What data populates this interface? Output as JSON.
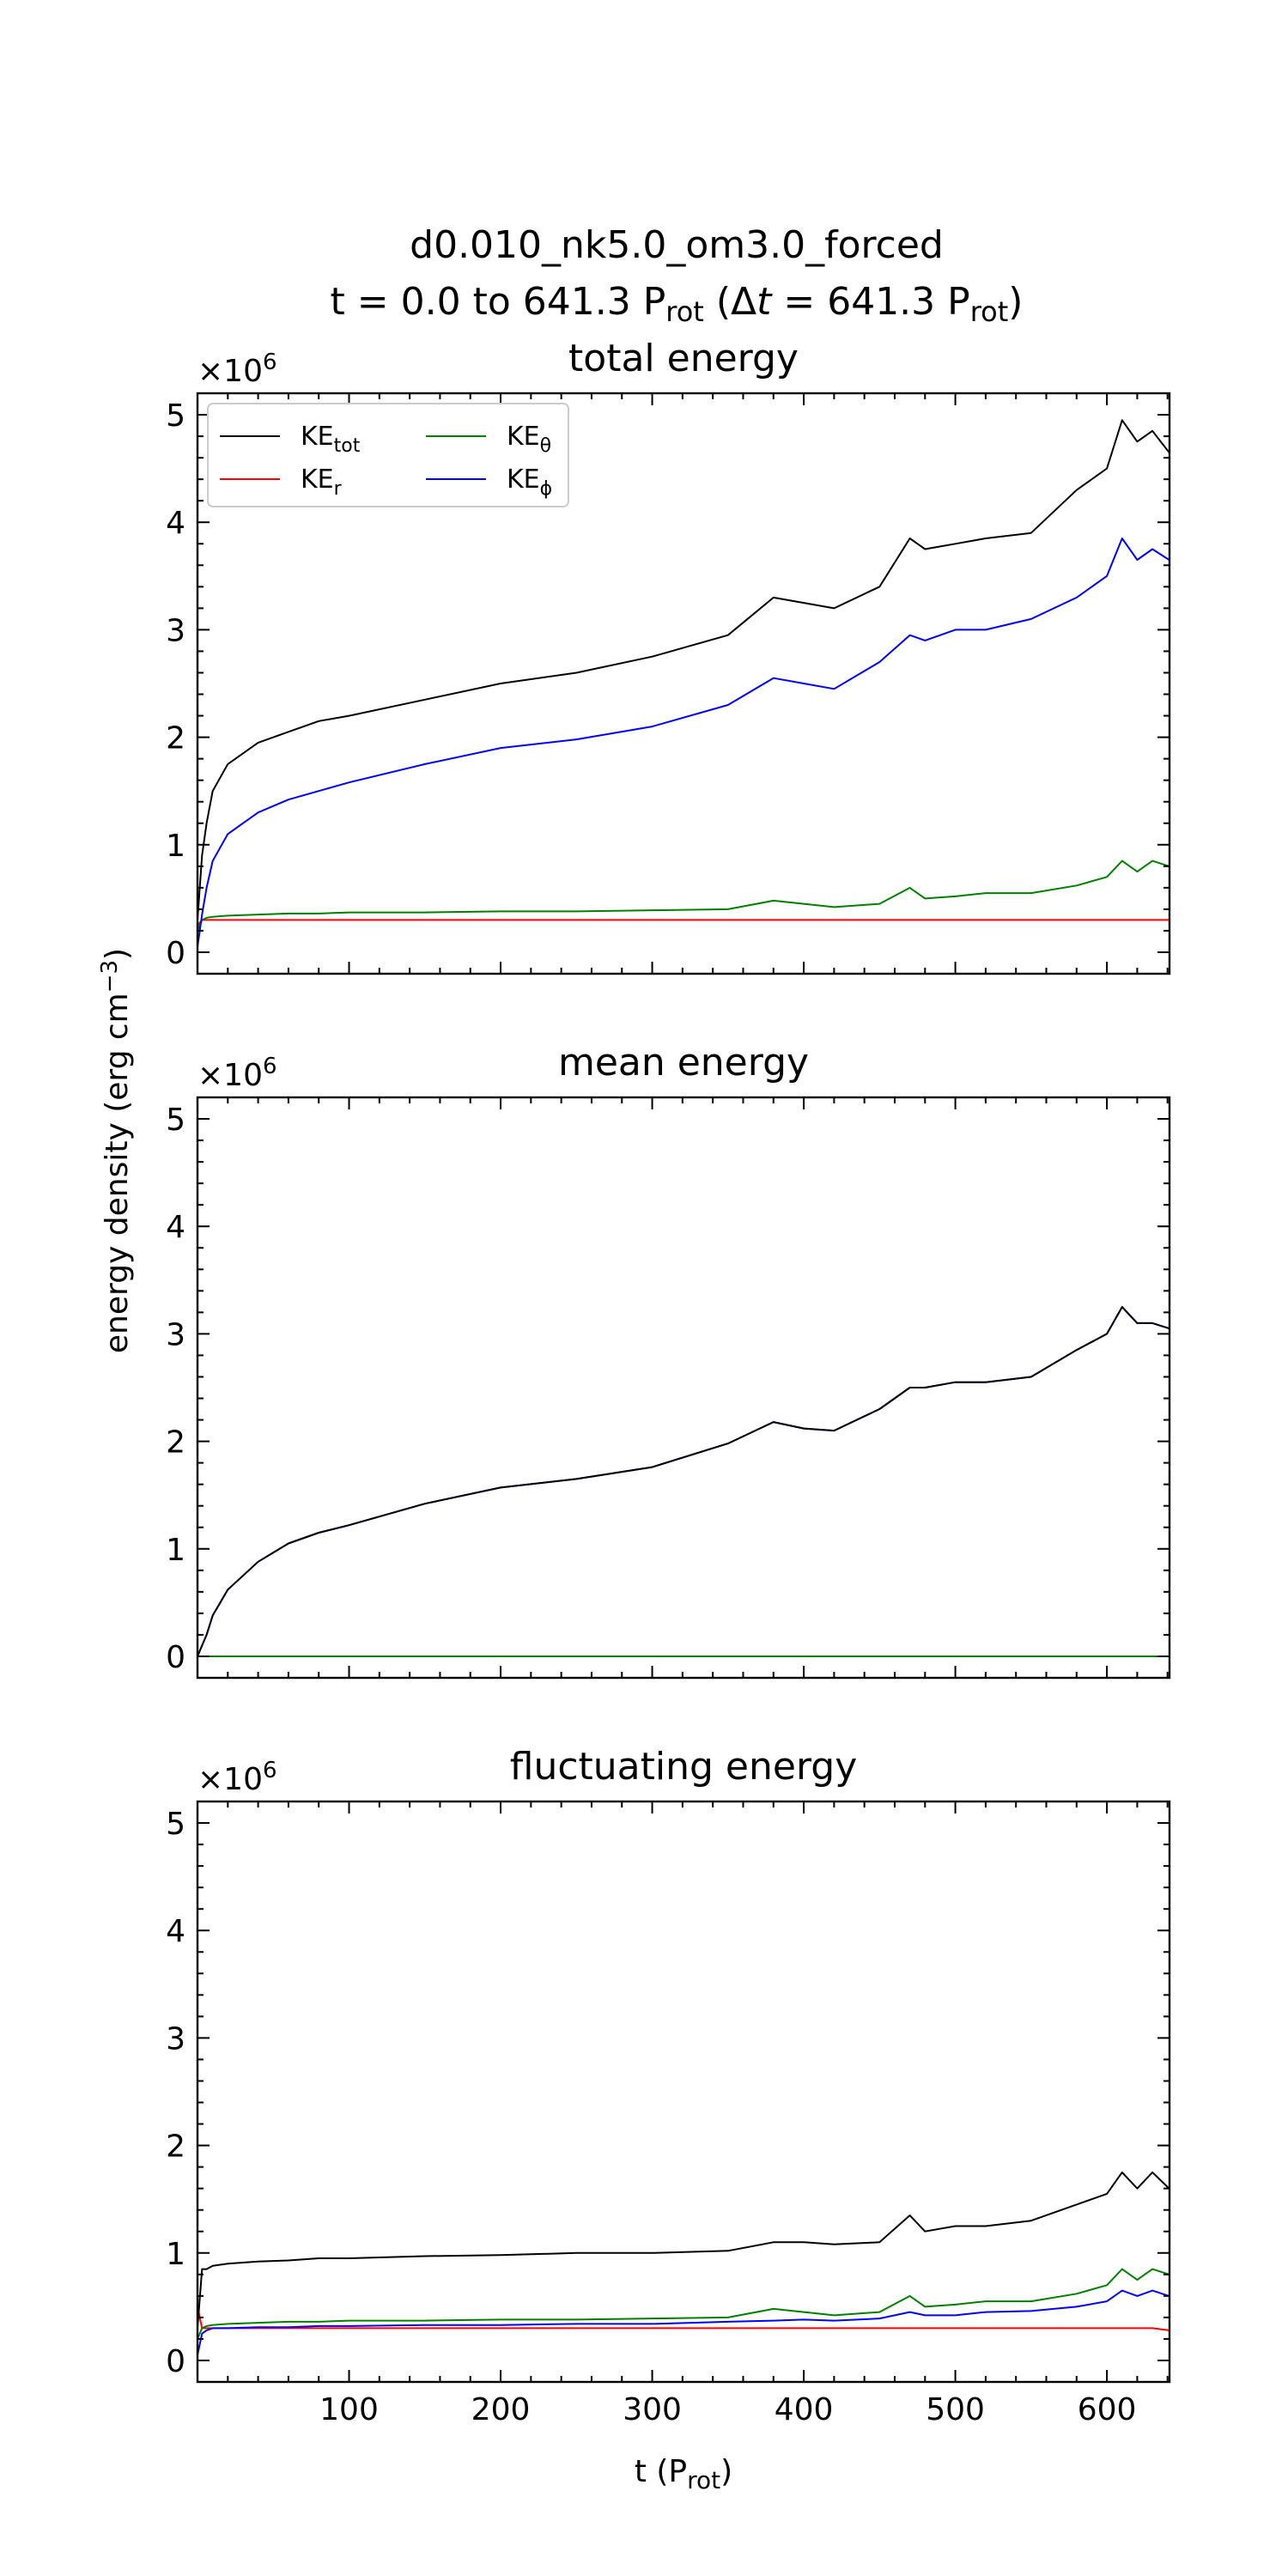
{
  "figure": {
    "title_line1": "d0.010_nk5.0_om3.0_forced",
    "title_line2_pre": "t = 0.0 to 641.3 P",
    "title_line2_sub1": "rot",
    "title_line2_mid": " (Δ",
    "title_line2_t": "t",
    "title_line2_eq": " = 641.3 P",
    "title_line2_sub2": "rot",
    "title_line2_post": ")",
    "ylabel_pre": "energy density (erg cm",
    "ylabel_sup": "−3",
    "ylabel_post": ")",
    "xlabel_pre": "t (P",
    "xlabel_sub": "rot",
    "xlabel_post": ")",
    "exponent_label": "×10",
    "exponent_sup": "6"
  },
  "legend": {
    "location": "upper-left",
    "entries": [
      {
        "key": "tot",
        "base": "KE",
        "sub": "tot",
        "color": "#000000"
      },
      {
        "key": "theta",
        "base": "KE",
        "sub": "θ",
        "color": "#008000"
      },
      {
        "key": "r",
        "base": "KE",
        "sub": "r",
        "color": "#ff0000"
      },
      {
        "key": "phi",
        "base": "KE",
        "sub": "ϕ",
        "color": "#0000ff"
      }
    ]
  },
  "chart_data": [
    {
      "type": "line",
      "title": "total energy",
      "xlim": [
        0,
        641.3
      ],
      "ylim": [
        -0.2,
        5.2
      ],
      "y_multiplier": "1e6",
      "xticks": [
        100,
        200,
        300,
        400,
        500,
        600
      ],
      "yticks": [
        0,
        1,
        2,
        3,
        4,
        5
      ],
      "x": [
        0,
        3,
        6,
        10,
        20,
        40,
        60,
        80,
        100,
        150,
        200,
        250,
        300,
        350,
        380,
        400,
        420,
        450,
        470,
        480,
        500,
        520,
        550,
        580,
        600,
        610,
        620,
        630,
        641
      ],
      "series": [
        {
          "name": "KEtot",
          "color": "#000000",
          "values": [
            0.3,
            0.9,
            1.2,
            1.5,
            1.75,
            1.95,
            2.05,
            2.15,
            2.2,
            2.35,
            2.5,
            2.6,
            2.75,
            2.95,
            3.3,
            3.25,
            3.2,
            3.4,
            3.85,
            3.75,
            3.8,
            3.85,
            3.9,
            4.3,
            4.5,
            4.95,
            4.75,
            4.85,
            4.65
          ]
        },
        {
          "name": "KEr",
          "color": "#ff0000",
          "values": [
            0.25,
            0.3,
            0.3,
            0.3,
            0.3,
            0.3,
            0.3,
            0.3,
            0.3,
            0.3,
            0.3,
            0.3,
            0.3,
            0.3,
            0.3,
            0.3,
            0.3,
            0.3,
            0.3,
            0.3,
            0.3,
            0.3,
            0.3,
            0.3,
            0.3,
            0.3,
            0.3,
            0.3,
            0.3
          ]
        },
        {
          "name": "KEθ",
          "color": "#008000",
          "values": [
            0.2,
            0.3,
            0.32,
            0.33,
            0.34,
            0.35,
            0.36,
            0.36,
            0.37,
            0.37,
            0.38,
            0.38,
            0.39,
            0.4,
            0.48,
            0.45,
            0.42,
            0.45,
            0.6,
            0.5,
            0.52,
            0.55,
            0.55,
            0.62,
            0.7,
            0.85,
            0.75,
            0.85,
            0.8
          ]
        },
        {
          "name": "KEϕ",
          "color": "#0000ff",
          "values": [
            0.05,
            0.35,
            0.6,
            0.85,
            1.1,
            1.3,
            1.42,
            1.5,
            1.58,
            1.75,
            1.9,
            1.98,
            2.1,
            2.3,
            2.55,
            2.5,
            2.45,
            2.7,
            2.95,
            2.9,
            3.0,
            3.0,
            3.1,
            3.3,
            3.5,
            3.85,
            3.65,
            3.75,
            3.65
          ]
        }
      ]
    },
    {
      "type": "line",
      "title": "mean energy",
      "xlim": [
        0,
        641.3
      ],
      "ylim": [
        -0.2,
        5.2
      ],
      "y_multiplier": "1e6",
      "xticks": [
        100,
        200,
        300,
        400,
        500,
        600
      ],
      "yticks": [
        0,
        1,
        2,
        3,
        4,
        5
      ],
      "x": [
        0,
        3,
        6,
        10,
        20,
        40,
        60,
        80,
        100,
        150,
        200,
        250,
        300,
        350,
        380,
        400,
        420,
        450,
        470,
        480,
        500,
        520,
        550,
        580,
        600,
        610,
        620,
        630,
        641
      ],
      "series": [
        {
          "name": "KEtot",
          "color": "#000000",
          "values": [
            0,
            0.1,
            0.2,
            0.38,
            0.62,
            0.88,
            1.05,
            1.15,
            1.22,
            1.42,
            1.57,
            1.65,
            1.76,
            1.98,
            2.18,
            2.12,
            2.1,
            2.3,
            2.5,
            2.5,
            2.55,
            2.55,
            2.6,
            2.85,
            3.0,
            3.25,
            3.1,
            3.1,
            3.05
          ]
        },
        {
          "name": "KEr",
          "color": "#ff0000",
          "values": [
            0,
            0,
            0,
            0,
            0,
            0,
            0,
            0,
            0,
            0,
            0,
            0,
            0,
            0,
            0,
            0,
            0,
            0,
            0,
            0,
            0,
            0,
            0,
            0,
            0,
            0,
            0,
            0,
            0
          ]
        },
        {
          "name": "KEθ",
          "color": "#008000",
          "values": [
            0,
            0,
            0,
            0,
            0,
            0,
            0,
            0,
            0,
            0,
            0,
            0,
            0,
            0,
            0,
            0,
            0,
            0,
            0,
            0,
            0,
            0,
            0,
            0,
            0,
            0,
            0,
            0,
            0
          ]
        },
        {
          "name": "KEϕ",
          "color": "#0000ff",
          "values": [
            0,
            0.1,
            0.2,
            0.38,
            0.62,
            0.88,
            1.05,
            1.15,
            1.22,
            1.42,
            1.57,
            1.65,
            1.76,
            1.98,
            2.18,
            2.12,
            2.1,
            2.3,
            2.5,
            2.5,
            2.55,
            2.55,
            2.6,
            2.85,
            3.0,
            3.25,
            3.1,
            3.1,
            3.05
          ]
        }
      ]
    },
    {
      "type": "line",
      "title": "fluctuating energy",
      "xlim": [
        0,
        641.3
      ],
      "ylim": [
        -0.2,
        5.2
      ],
      "y_multiplier": "1e6",
      "xticks": [
        100,
        200,
        300,
        400,
        500,
        600
      ],
      "yticks": [
        0,
        1,
        2,
        3,
        4,
        5
      ],
      "x": [
        0,
        3,
        6,
        10,
        20,
        40,
        60,
        80,
        100,
        150,
        200,
        250,
        300,
        350,
        380,
        400,
        420,
        450,
        470,
        480,
        500,
        520,
        550,
        580,
        600,
        610,
        620,
        630,
        641
      ],
      "series": [
        {
          "name": "KEtot",
          "color": "#000000",
          "values": [
            0.3,
            0.85,
            0.85,
            0.88,
            0.9,
            0.92,
            0.93,
            0.95,
            0.95,
            0.97,
            0.98,
            1.0,
            1.0,
            1.02,
            1.1,
            1.1,
            1.08,
            1.1,
            1.35,
            1.2,
            1.25,
            1.25,
            1.3,
            1.45,
            1.55,
            1.75,
            1.6,
            1.75,
            1.6
          ]
        },
        {
          "name": "KEr",
          "color": "#ff0000",
          "values": [
            0.5,
            0.3,
            0.3,
            0.3,
            0.3,
            0.3,
            0.3,
            0.3,
            0.3,
            0.3,
            0.3,
            0.3,
            0.3,
            0.3,
            0.3,
            0.3,
            0.3,
            0.3,
            0.3,
            0.3,
            0.3,
            0.3,
            0.3,
            0.3,
            0.3,
            0.3,
            0.3,
            0.3,
            0.28
          ]
        },
        {
          "name": "KEθ",
          "color": "#008000",
          "values": [
            0.2,
            0.3,
            0.32,
            0.33,
            0.34,
            0.35,
            0.36,
            0.36,
            0.37,
            0.37,
            0.38,
            0.38,
            0.39,
            0.4,
            0.48,
            0.45,
            0.42,
            0.45,
            0.6,
            0.5,
            0.52,
            0.55,
            0.55,
            0.62,
            0.7,
            0.85,
            0.75,
            0.85,
            0.8
          ]
        },
        {
          "name": "KEϕ",
          "color": "#0000ff",
          "values": [
            0.05,
            0.25,
            0.28,
            0.3,
            0.3,
            0.31,
            0.31,
            0.32,
            0.32,
            0.33,
            0.33,
            0.34,
            0.34,
            0.36,
            0.37,
            0.38,
            0.37,
            0.39,
            0.45,
            0.42,
            0.42,
            0.45,
            0.46,
            0.5,
            0.55,
            0.65,
            0.6,
            0.65,
            0.6
          ]
        }
      ]
    }
  ]
}
